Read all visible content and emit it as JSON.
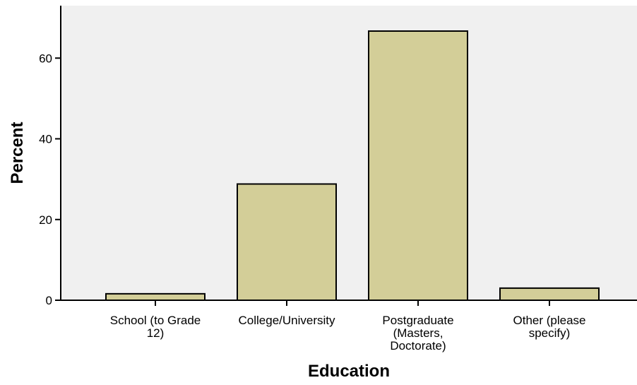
{
  "chart_data": {
    "type": "bar",
    "title": "",
    "xlabel": "Education",
    "ylabel": "Percent",
    "categories": [
      [
        "School (to Grade",
        "12)"
      ],
      [
        "College/University"
      ],
      [
        "Postgraduate",
        "(Masters,",
        "Doctorate)"
      ],
      [
        "Other (please",
        "specify)"
      ]
    ],
    "values": [
      1.6,
      28.8,
      66.7,
      3.0
    ],
    "ylim": [
      0,
      73
    ],
    "yticks": [
      0,
      20,
      40,
      60
    ],
    "grid": false,
    "legend": "none"
  },
  "colors": {
    "bar_fill": "#d3ce98",
    "bar_stroke": "#000000",
    "plot_background": "#f0f0f0",
    "axis": "#000000"
  }
}
